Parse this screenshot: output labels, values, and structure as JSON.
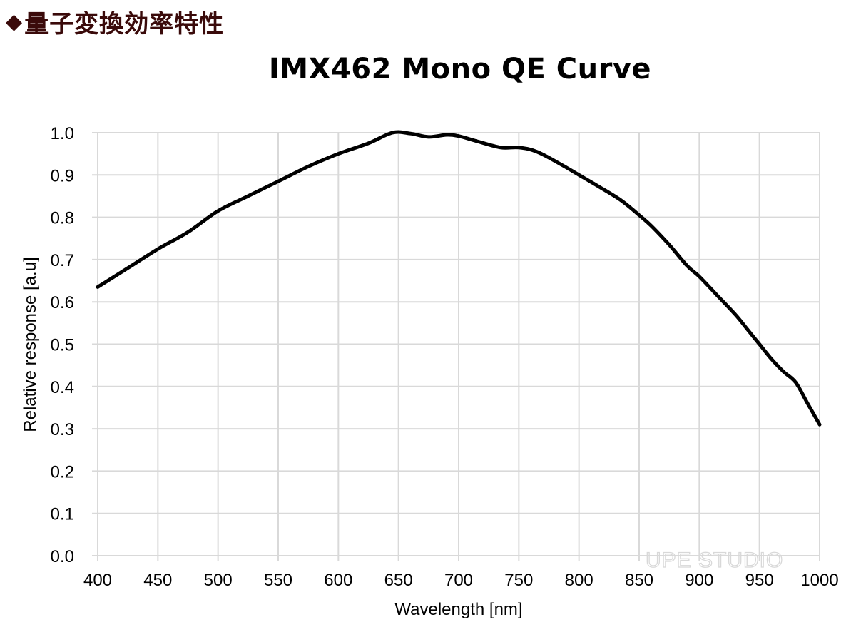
{
  "heading": {
    "bullet": "◆",
    "text": "量子変換効率特性",
    "color": "#3a0a0a"
  },
  "watermark": "UPE STUDIO",
  "chart_data": {
    "type": "line",
    "title": "IMX462 Mono QE Curve",
    "xlabel": "Wavelength [nm]",
    "ylabel": "Relative response [a.u]",
    "xlim": [
      400,
      1000
    ],
    "ylim": [
      0.0,
      1.0
    ],
    "x_ticks": [
      "400",
      "450",
      "500",
      "550",
      "600",
      "650",
      "700",
      "750",
      "800",
      "850",
      "900",
      "950",
      "1000"
    ],
    "y_ticks": [
      "0.0",
      "0.1",
      "0.2",
      "0.3",
      "0.4",
      "0.5",
      "0.6",
      "0.7",
      "0.8",
      "0.9",
      "1.0"
    ],
    "grid": true,
    "legend": null,
    "series": [
      {
        "name": "IMX462 Mono",
        "color": "#000000",
        "x": [
          400,
          425,
          450,
          475,
          500,
          525,
          550,
          575,
          600,
          625,
          645,
          660,
          675,
          690,
          700,
          715,
          735,
          750,
          765,
          785,
          800,
          815,
          835,
          850,
          860,
          875,
          890,
          900,
          915,
          930,
          940,
          950,
          960,
          970,
          980,
          990,
          1000
        ],
        "values": [
          0.635,
          0.68,
          0.725,
          0.765,
          0.815,
          0.85,
          0.885,
          0.92,
          0.95,
          0.975,
          1.0,
          0.998,
          0.99,
          0.995,
          0.992,
          0.98,
          0.965,
          0.965,
          0.955,
          0.925,
          0.9,
          0.875,
          0.84,
          0.805,
          0.78,
          0.735,
          0.685,
          0.66,
          0.615,
          0.57,
          0.535,
          0.5,
          0.465,
          0.435,
          0.41,
          0.36,
          0.31
        ]
      }
    ]
  }
}
